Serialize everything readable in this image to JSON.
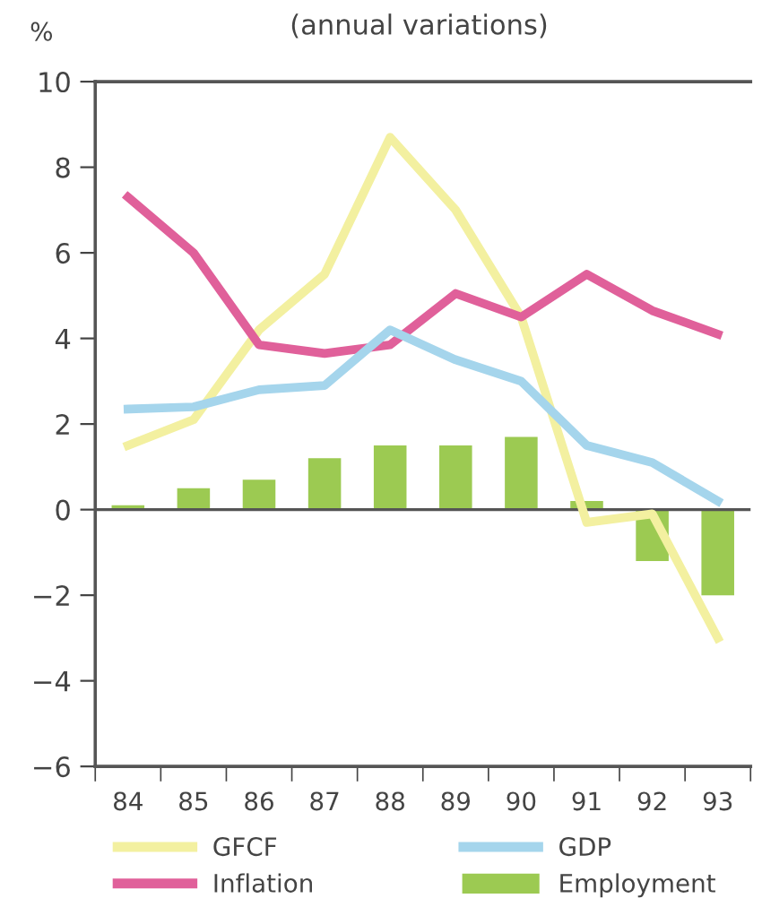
{
  "chart_data": {
    "type": "line",
    "subtitle": "(annual variations)",
    "ylabel": "%",
    "categories": [
      "84",
      "85",
      "86",
      "87",
      "88",
      "89",
      "90",
      "91",
      "92",
      "93"
    ],
    "series": [
      {
        "name": "GFCF",
        "color": "#f3f0a0",
        "values": [
          1.5,
          2.1,
          4.2,
          5.5,
          8.7,
          7.0,
          4.5,
          -0.3,
          -0.1,
          -3.0
        ]
      },
      {
        "name": "Inflation",
        "color": "#e0609a",
        "values": [
          7.3,
          6.0,
          3.85,
          3.65,
          3.85,
          5.05,
          4.5,
          5.5,
          4.65,
          4.1
        ]
      },
      {
        "name": "GDP",
        "color": "#a5d5ec",
        "values": [
          2.35,
          2.4,
          2.8,
          2.9,
          4.2,
          3.5,
          3.0,
          1.5,
          1.1,
          0.2
        ]
      },
      {
        "name": "Employment",
        "type": "bar",
        "color": "#9cca52",
        "values": [
          0.1,
          0.5,
          0.7,
          1.2,
          1.5,
          1.5,
          1.7,
          0.2,
          -1.2,
          -2.0
        ]
      }
    ],
    "ylim": [
      -6,
      10
    ],
    "yticks": [
      -6,
      -4,
      -2,
      0,
      2,
      4,
      6,
      8,
      10
    ],
    "ref_lines": [
      {
        "axis": "y",
        "value": 0,
        "color": "#555555"
      }
    ],
    "legend": "bottom",
    "grid": false,
    "marker": "none",
    "line_style": "solid"
  }
}
